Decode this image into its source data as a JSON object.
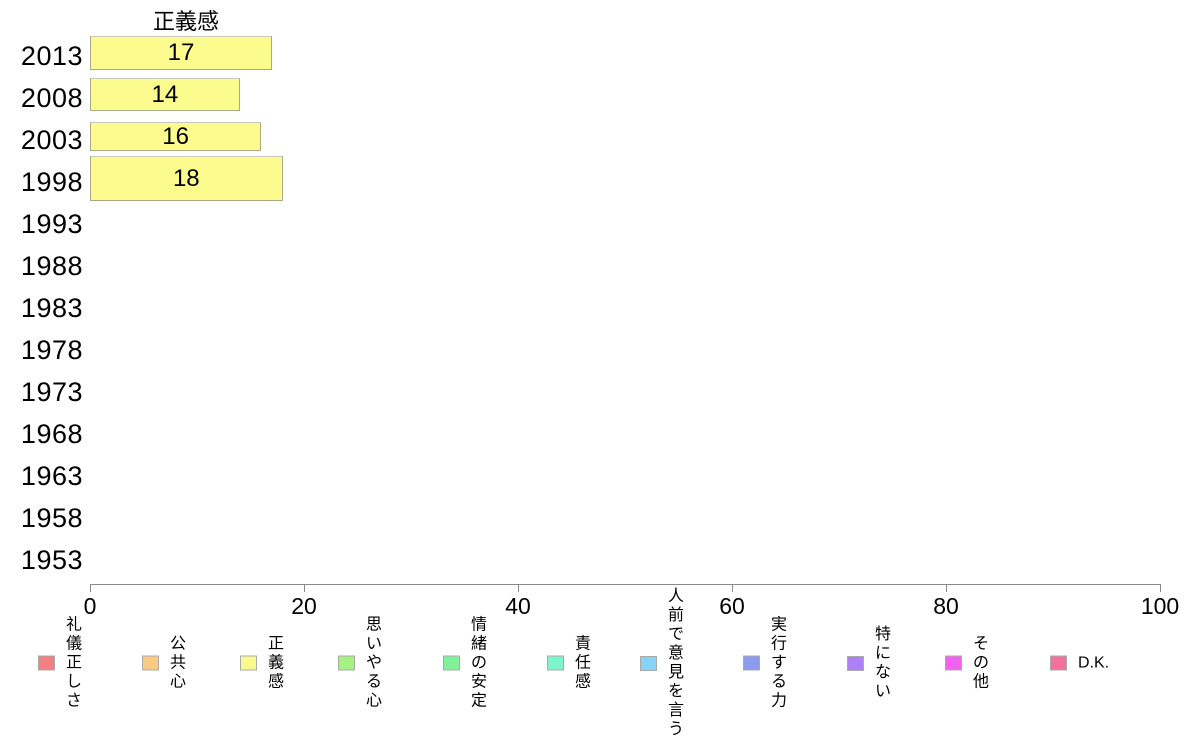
{
  "chart_data": {
    "type": "bar",
    "orientation": "horizontal",
    "title": "正義感",
    "categories": [
      "2013",
      "2008",
      "2003",
      "1998",
      "1993",
      "1988",
      "1983",
      "1978",
      "1973",
      "1968",
      "1963",
      "1958",
      "1953"
    ],
    "values": [
      17,
      14,
      16,
      18,
      null,
      null,
      null,
      null,
      null,
      null,
      null,
      null,
      null
    ],
    "xlim": [
      0,
      100
    ],
    "xticks": [
      0,
      20,
      40,
      60,
      80,
      100
    ],
    "grid": false,
    "bar_color": "#fcfc8e",
    "bar_border_color": "#a9a982",
    "axis_color": "#8a8a8a",
    "legend_position": "bottom"
  },
  "legend": {
    "items": [
      {
        "label": "礼儀\n正しさ",
        "color": "#f28080"
      },
      {
        "label": "公共心",
        "color": "#fbcb85"
      },
      {
        "label": "正義感",
        "color": "#fafa8c"
      },
      {
        "label": "思いや\nる心",
        "color": "#a5f281"
      },
      {
        "label": "情緒の\n安定",
        "color": "#81f29b"
      },
      {
        "label": "責任感",
        "color": "#80f2cc"
      },
      {
        "label": "人前で\n意見を\n言う",
        "color": "#86d4f5"
      },
      {
        "label": "実行す\nる力",
        "color": "#8c9af0"
      },
      {
        "label": "特に\nない",
        "color": "#ae80f5"
      },
      {
        "label": "その他",
        "color": "#f262ee"
      },
      {
        "label": "D.K.",
        "color": "#f4719e"
      }
    ]
  }
}
